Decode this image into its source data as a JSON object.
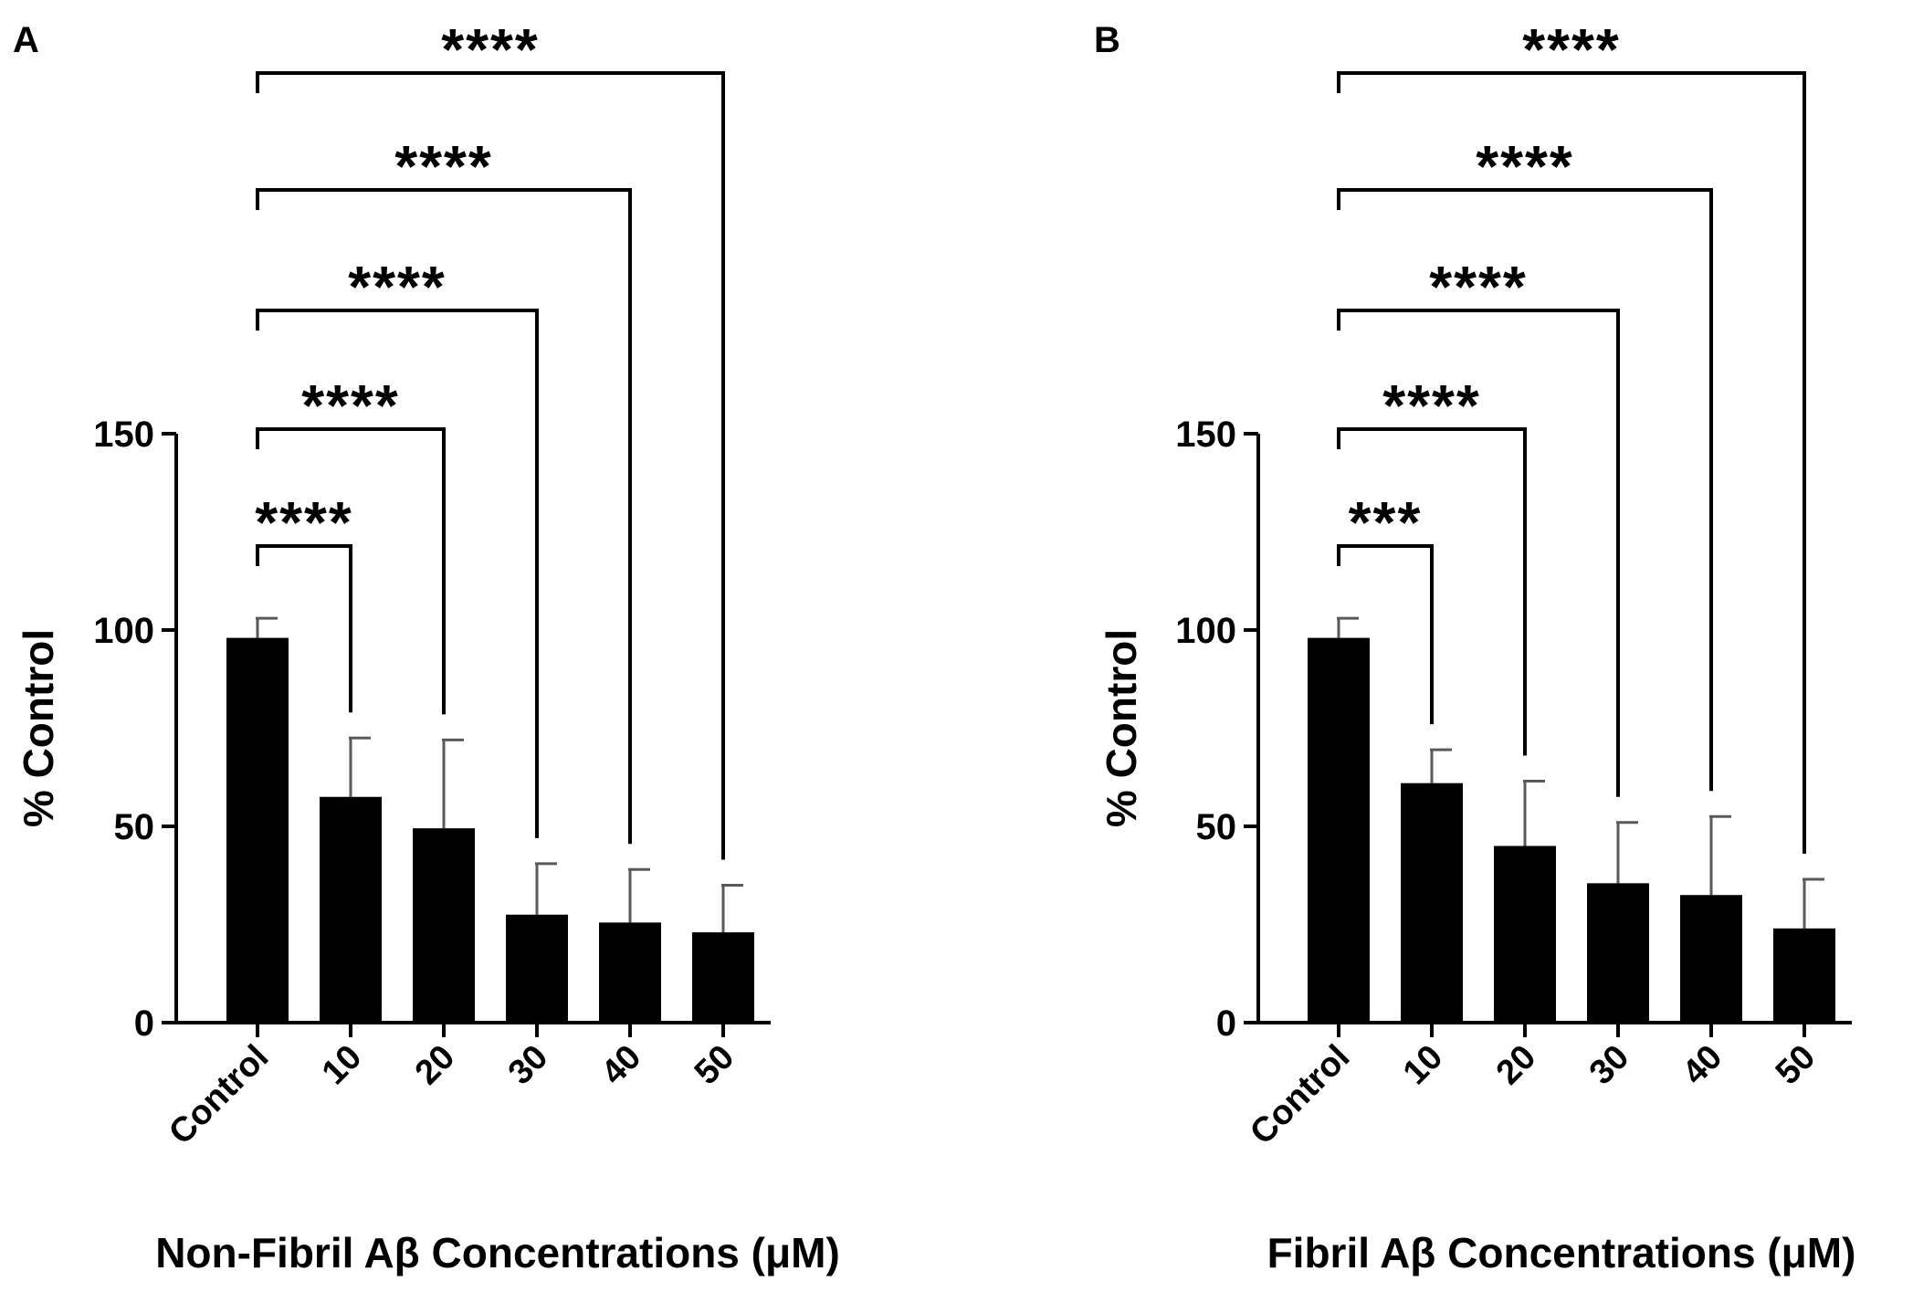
{
  "chart_data": [
    {
      "panel_label": "A",
      "type": "bar",
      "categories": [
        "Control",
        "10",
        "20",
        "30",
        "40",
        "50"
      ],
      "values": [
        98,
        57.5,
        49.5,
        27.5,
        25.5,
        23
      ],
      "errors": [
        5,
        15,
        22.5,
        13,
        13.5,
        12
      ],
      "xlabel": "Non-Fibril Aβ Concentrations (μM)",
      "ylabel": "% Control",
      "ylim": [
        0,
        150
      ],
      "yticks": [
        0,
        50,
        100,
        150
      ],
      "bar_color": "#000000",
      "comparisons": [
        {
          "from": "Control",
          "to": "10",
          "label": "****"
        },
        {
          "from": "Control",
          "to": "20",
          "label": "****"
        },
        {
          "from": "Control",
          "to": "30",
          "label": "****"
        },
        {
          "from": "Control",
          "to": "40",
          "label": "****"
        },
        {
          "from": "Control",
          "to": "50",
          "label": "****"
        }
      ]
    },
    {
      "panel_label": "B",
      "type": "bar",
      "categories": [
        "Control",
        "10",
        "20",
        "30",
        "40",
        "50"
      ],
      "values": [
        98,
        61,
        45,
        35.5,
        32.5,
        24
      ],
      "errors": [
        5,
        8.5,
        16.5,
        15.5,
        20,
        12.5
      ],
      "xlabel": "Fibril Aβ Concentrations (μM)",
      "ylabel": "% Control",
      "ylim": [
        0,
        150
      ],
      "yticks": [
        0,
        50,
        100,
        150
      ],
      "bar_color": "#000000",
      "comparisons": [
        {
          "from": "Control",
          "to": "10",
          "label": "***"
        },
        {
          "from": "Control",
          "to": "20",
          "label": "****"
        },
        {
          "from": "Control",
          "to": "30",
          "label": "****"
        },
        {
          "from": "Control",
          "to": "40",
          "label": "****"
        },
        {
          "from": "Control",
          "to": "50",
          "label": "****"
        }
      ]
    }
  ]
}
